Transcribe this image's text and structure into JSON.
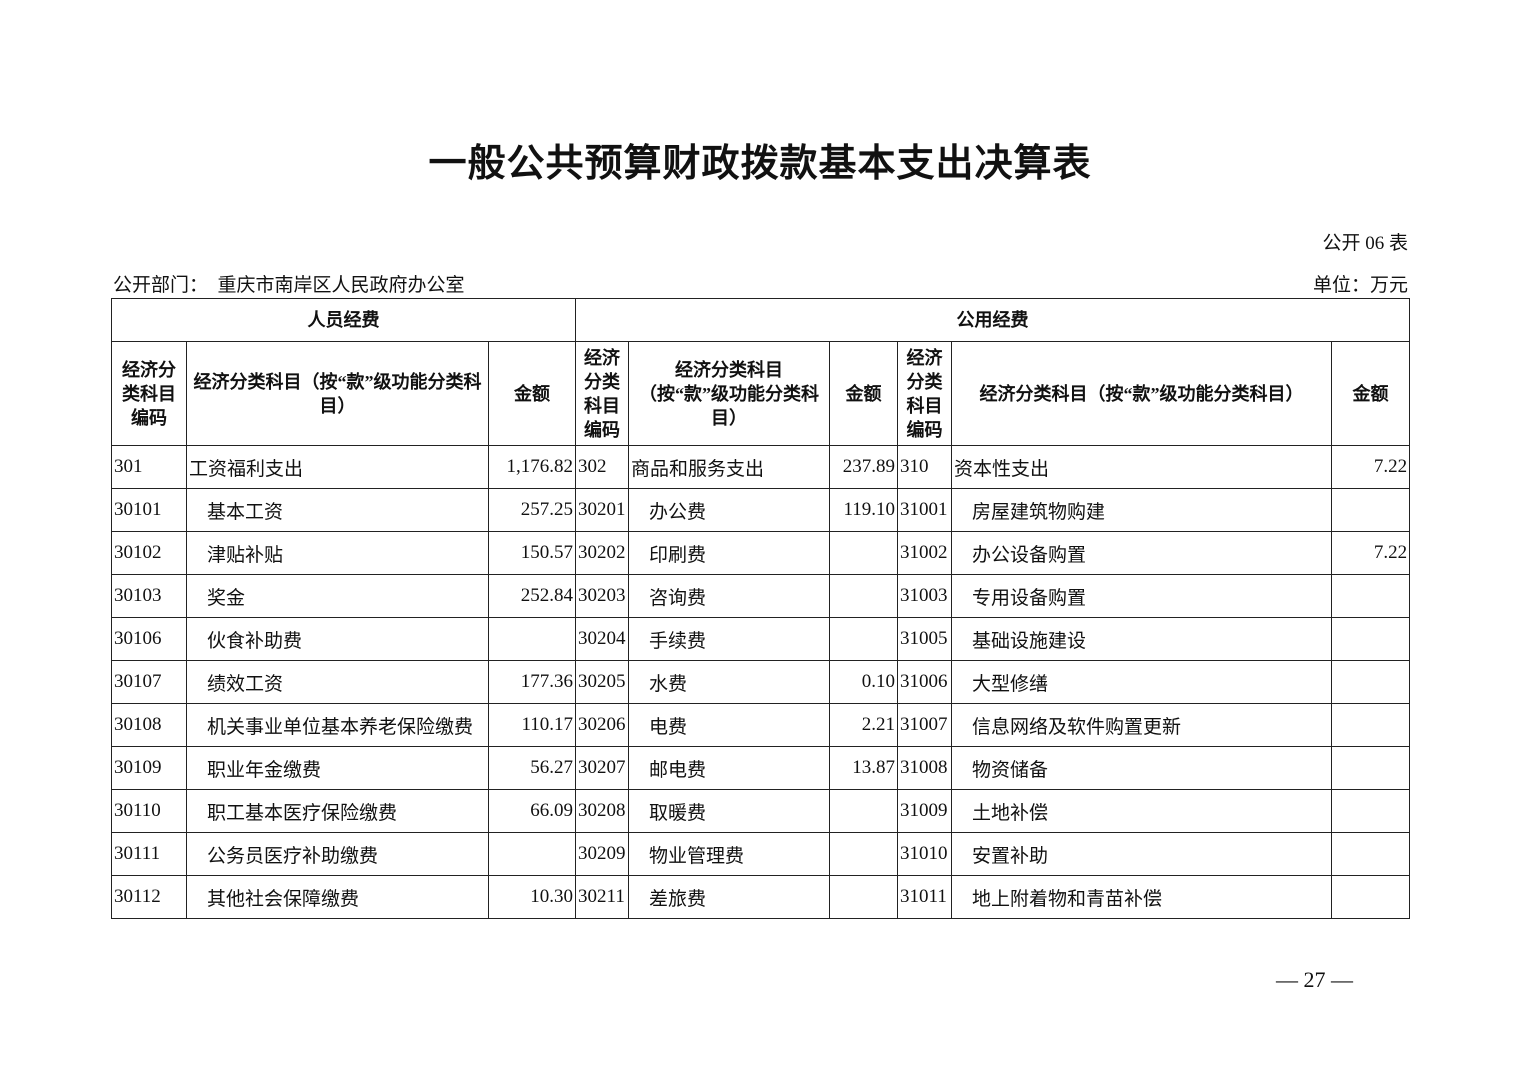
{
  "title": "一般公共预算财政拨款基本支出决算表",
  "form_no": "公开 06 表",
  "department": "公开部门：　重庆市南岸区人民政府办公室",
  "unit": "单位：万元",
  "page_number": "— 27 —",
  "table": {
    "groups": [
      "人员经费",
      "公用经费"
    ],
    "headers": [
      "经济分类科目编码",
      "经济分类科目（按“款”级功能分类科目）",
      "金额",
      "经济分类科目编码",
      "经济分类科目（按“款”级功能分类科目）",
      "金额",
      "经济分类科目编码",
      "经济分类科目（按“款”级功能分类科目）",
      "金额"
    ],
    "rows": [
      [
        "301",
        "工资福利支出",
        "1,176.82",
        "302",
        "商品和服务支出",
        "237.89",
        "310",
        "资本性支出",
        "7.22"
      ],
      [
        "30101",
        "基本工资",
        "257.25",
        "30201",
        "办公费",
        "119.10",
        "31001",
        "房屋建筑物购建",
        ""
      ],
      [
        "30102",
        "津贴补贴",
        "150.57",
        "30202",
        "印刷费",
        "",
        "31002",
        "办公设备购置",
        "7.22"
      ],
      [
        "30103",
        "奖金",
        "252.84",
        "30203",
        "咨询费",
        "",
        "31003",
        "专用设备购置",
        ""
      ],
      [
        "30106",
        "伙食补助费",
        "",
        "30204",
        "手续费",
        "",
        "31005",
        "基础设施建设",
        ""
      ],
      [
        "30107",
        "绩效工资",
        "177.36",
        "30205",
        "水费",
        "0.10",
        "31006",
        "大型修缮",
        ""
      ],
      [
        "30108",
        "机关事业单位基本养老保险缴费",
        "110.17",
        "30206",
        "电费",
        "2.21",
        "31007",
        "信息网络及软件购置更新",
        ""
      ],
      [
        "30109",
        "职业年金缴费",
        "56.27",
        "30207",
        "邮电费",
        "13.87",
        "31008",
        "物资储备",
        ""
      ],
      [
        "30110",
        "职工基本医疗保险缴费",
        "66.09",
        "30208",
        "取暖费",
        "",
        "31009",
        "土地补偿",
        ""
      ],
      [
        "30111",
        "公务员医疗补助缴费",
        "",
        "30209",
        "物业管理费",
        "",
        "31010",
        "安置补助",
        ""
      ],
      [
        "30112",
        "其他社会保障缴费",
        "10.30",
        "30211",
        "差旅费",
        "",
        "31011",
        "地上附着物和青苗补偿",
        ""
      ]
    ]
  }
}
